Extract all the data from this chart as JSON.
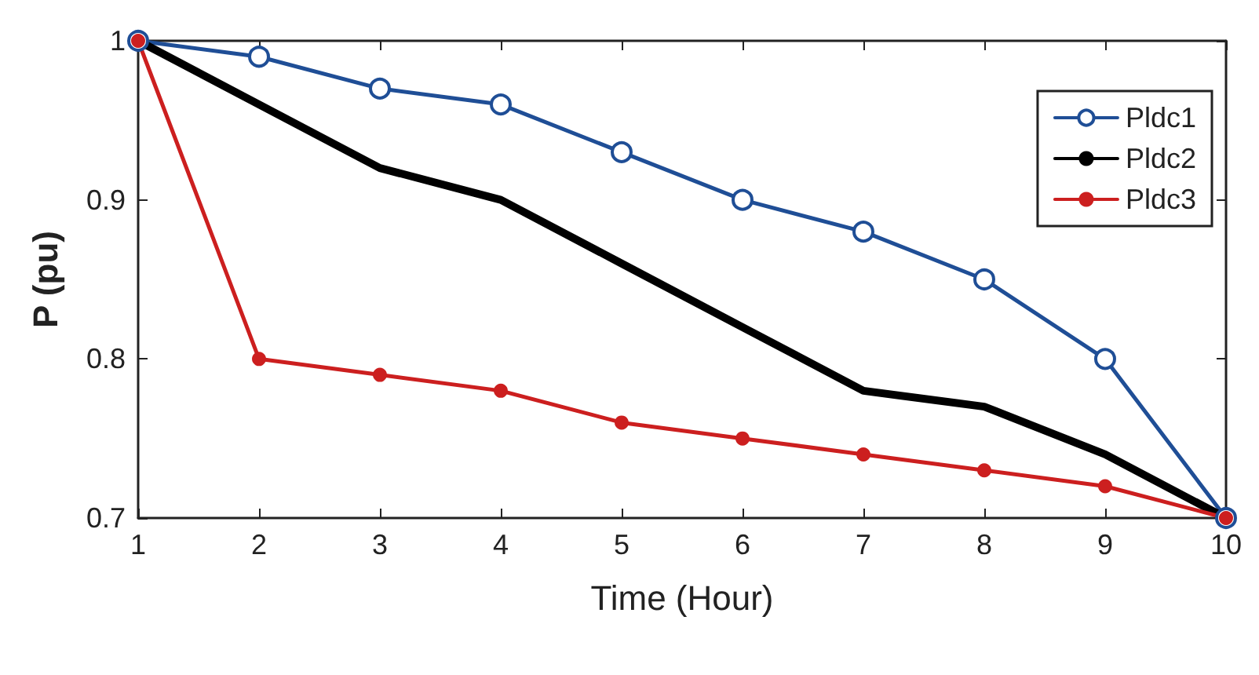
{
  "chart_data": {
    "type": "line",
    "xlabel": "Time (Hour)",
    "ylabel": "P (pu)",
    "x": [
      1,
      2,
      3,
      4,
      5,
      6,
      7,
      8,
      9,
      10
    ],
    "series": [
      {
        "name": "Pldc1",
        "color": "#1f4e96",
        "marker": "circle",
        "values": [
          1,
          0.99,
          0.97,
          0.96,
          0.93,
          0.9,
          0.88,
          0.85,
          0.8,
          0.7
        ]
      },
      {
        "name": "Pldc2",
        "color": "#000000",
        "marker": "none",
        "values": [
          1,
          0.96,
          0.92,
          0.9,
          0.86,
          0.82,
          0.78,
          0.77,
          0.74,
          0.7
        ]
      },
      {
        "name": "Pldc3",
        "color": "#cc1f1f",
        "marker": "filled-circle",
        "values": [
          1,
          0.8,
          0.79,
          0.78,
          0.76,
          0.75,
          0.74,
          0.73,
          0.72,
          0.7
        ]
      }
    ],
    "xlim": [
      1,
      10
    ],
    "xticks": [
      1,
      2,
      3,
      4,
      5,
      6,
      7,
      8,
      9,
      10
    ],
    "ylim": [
      0.7,
      1
    ],
    "yticks": [
      0.7,
      0.8,
      0.9,
      1
    ],
    "grid": false,
    "legend": "top right"
  }
}
